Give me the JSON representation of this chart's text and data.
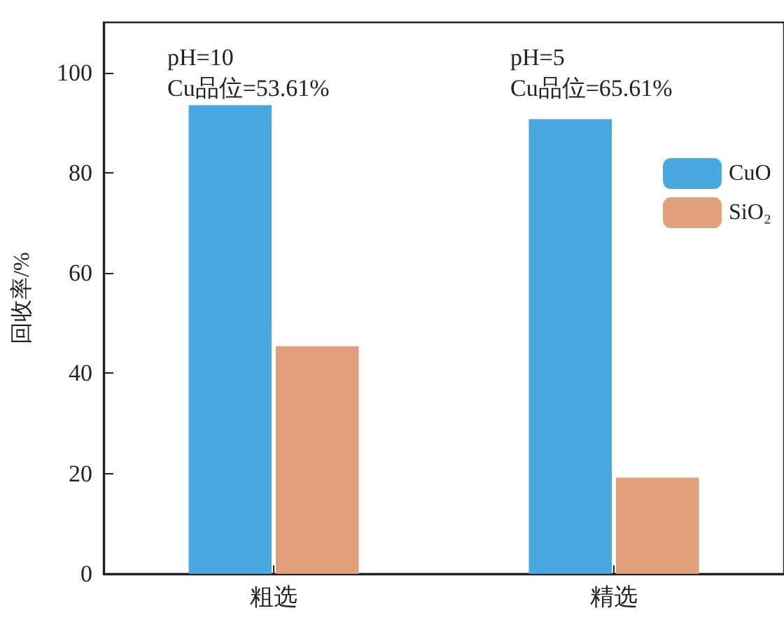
{
  "chart_data": {
    "type": "bar",
    "ylabel": "回收率/%",
    "categories": [
      "粗选",
      "精选"
    ],
    "series": [
      {
        "name": "CuO",
        "color": "#4aa8e0",
        "values": [
          93.5,
          90.7
        ]
      },
      {
        "name": "SiO₂",
        "color": "#e0a07a",
        "values": [
          45.4,
          19.2
        ]
      }
    ],
    "ylim": [
      0,
      110
    ],
    "yticks": [
      0,
      20,
      40,
      60,
      80,
      100
    ],
    "annotations": [
      "pH=10\nCu品位=53.61%",
      "pH=5\nCu品位=65.61%"
    ],
    "legend": "top right",
    "grid": false
  }
}
